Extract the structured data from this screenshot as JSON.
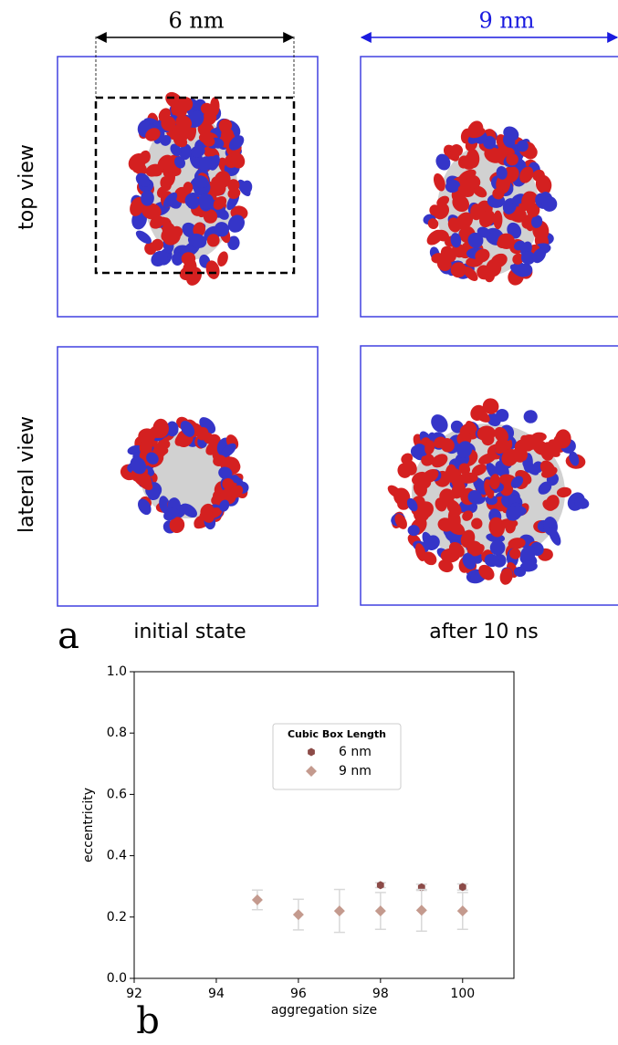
{
  "panel_a": {
    "label": "a",
    "width_left": "6 nm",
    "width_right": "9 nm",
    "row_top": "top view",
    "row_bottom": "lateral view",
    "col_left": "initial state",
    "col_right": "after 10 ns"
  },
  "panel_b": {
    "label": "b"
  },
  "chart_data": {
    "type": "scatter",
    "x_label": "aggregation size",
    "y_label": "eccentricity",
    "xlim": [
      92,
      101.25
    ],
    "ylim": [
      0,
      1
    ],
    "xticks": [
      92,
      94,
      96,
      98,
      100
    ],
    "yticks": [
      {
        "value": 0,
        "label": "0.0"
      },
      0.2,
      0.4,
      0.6,
      0.8,
      {
        "value": 1,
        "label": "1.0"
      }
    ],
    "legend_title": "Cubic Box Length",
    "legend_loc": "upper center",
    "series": [
      {
        "name": "6 nm",
        "color": "#8c4b48",
        "marker": "hexagon",
        "x": [
          98,
          99,
          100
        ],
        "values": [
          0.304,
          0.297,
          0.298
        ],
        "errors": [
          0.008,
          0.01,
          0.01
        ]
      },
      {
        "name": "9 nm",
        "color": "#c49a8e",
        "marker": "diamond",
        "x": [
          95,
          96,
          97,
          98,
          99,
          100
        ],
        "values": [
          0.256,
          0.208,
          0.22,
          0.22,
          0.222,
          0.22
        ],
        "errors": [
          0.032,
          0.05,
          0.07,
          0.06,
          0.068,
          0.06
        ]
      }
    ]
  }
}
